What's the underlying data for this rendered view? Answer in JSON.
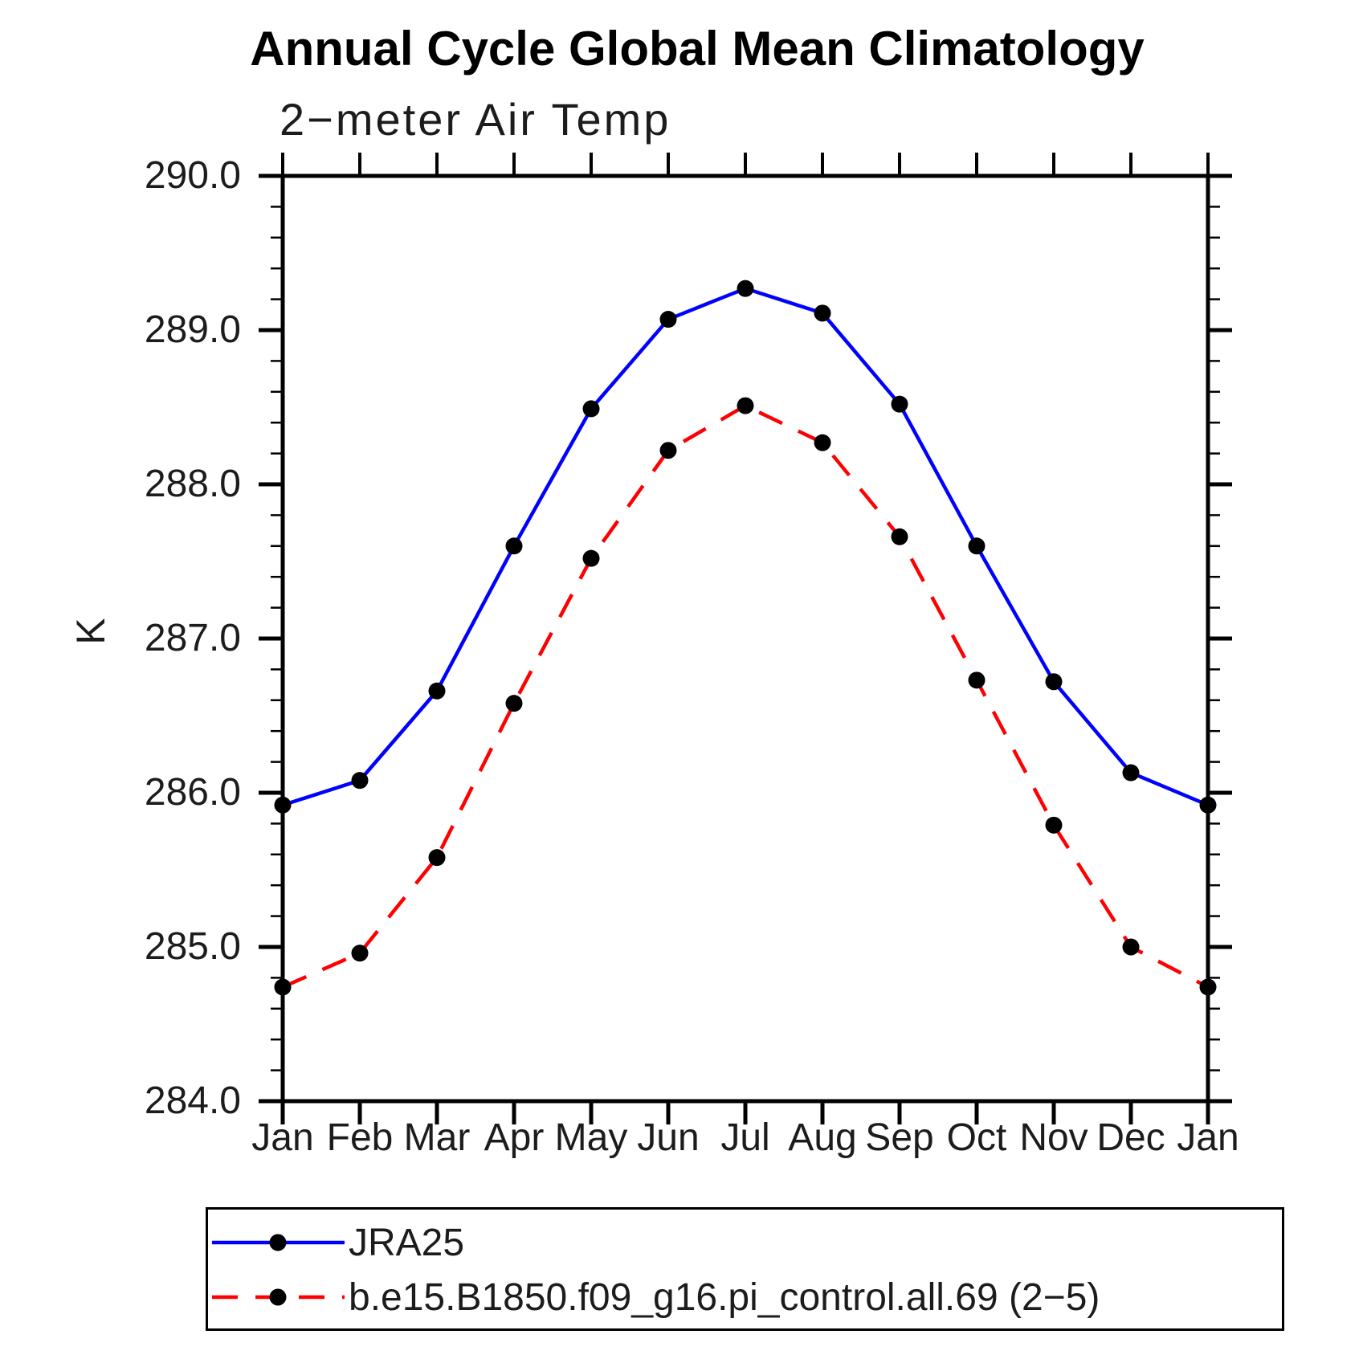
{
  "title": "Annual Cycle Global Mean Climatology",
  "subtitle": "2−meter Air Temp",
  "colors": {
    "background": "#ffffff",
    "axis": "#000000",
    "text": "#1c1c1c"
  },
  "chart_data": {
    "type": "line",
    "title": "Annual Cycle Global Mean Climatology",
    "subtitle": "2−meter Air Temp",
    "xlabel": "",
    "ylabel": "K",
    "grid": false,
    "legend_position": "bottom",
    "categories": [
      "Jan",
      "Feb",
      "Mar",
      "Apr",
      "May",
      "Jun",
      "Jul",
      "Aug",
      "Sep",
      "Oct",
      "Nov",
      "Dec",
      "Jan"
    ],
    "ylim": [
      284.0,
      290.0
    ],
    "y_minor_step": 0.2,
    "y_ticks": [
      {
        "value": 284.0,
        "label": "284.0"
      },
      {
        "value": 285.0,
        "label": "285.0"
      },
      {
        "value": 286.0,
        "label": "286.0"
      },
      {
        "value": 287.0,
        "label": "287.0"
      },
      {
        "value": 288.0,
        "label": "288.0"
      },
      {
        "value": 289.0,
        "label": "289.0"
      },
      {
        "value": 290.0,
        "label": "290.0"
      }
    ],
    "series": [
      {
        "name": "JRA25",
        "color": "#0000ff",
        "style": "solid",
        "marker": "circle",
        "marker_color": "#000000",
        "values": [
          285.92,
          286.08,
          286.66,
          287.6,
          288.49,
          289.07,
          289.27,
          289.11,
          288.52,
          287.6,
          286.72,
          286.13,
          285.92
        ]
      },
      {
        "name": "b.e15.B1850.f09_g16.pi_control.all.69 (2−5)",
        "color": "#ff0000",
        "style": "dashed",
        "marker": "circle",
        "marker_color": "#000000",
        "values": [
          284.74,
          284.96,
          285.58,
          286.58,
          287.52,
          288.22,
          288.51,
          288.27,
          287.66,
          286.73,
          285.79,
          285.0,
          284.74
        ]
      }
    ]
  }
}
